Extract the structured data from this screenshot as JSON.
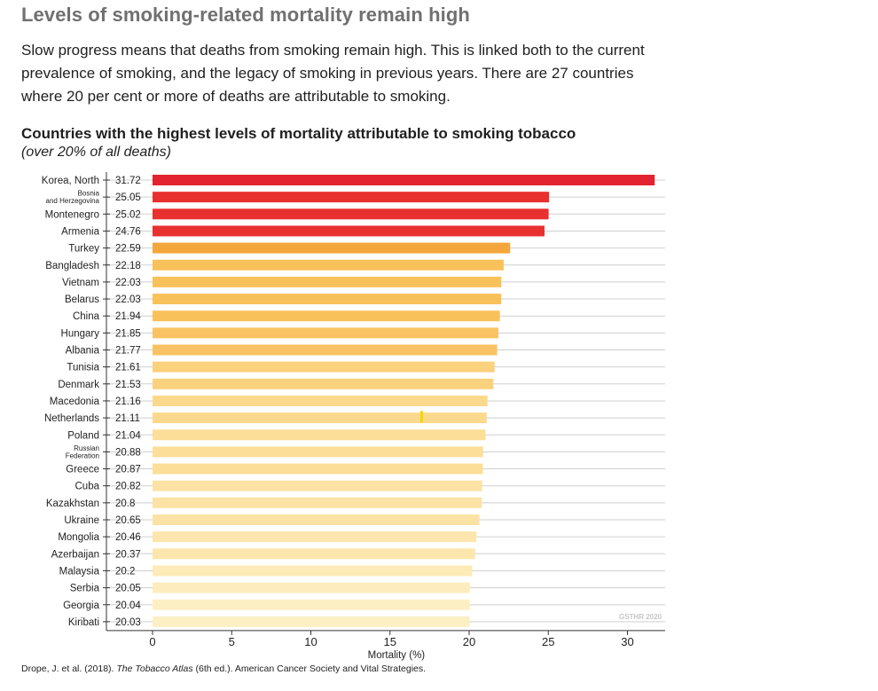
{
  "page": {
    "title": "Levels of smoking-related mortality remain high",
    "intro": "Slow progress means that deaths from smoking remain high. This is linked both to the current prevalence of smoking, and the legacy of smoking in previous years. There are 27 countries where 20 per cent or more of deaths are attributable to smoking.",
    "source_prefix": "Drope, J. et al. (2018). ",
    "source_title": "The Tobacco Atlas",
    "source_suffix": " (6th ed.). American Cancer Society and Vital Strategies."
  },
  "chart_data": {
    "type": "bar",
    "orientation": "horizontal",
    "title": "Countries with the highest levels of mortality attributable to smoking tobacco",
    "subtitle": "(over 20% of all deaths)",
    "xlabel": "Mortality (%)",
    "ylabel": "",
    "xlim": [
      0,
      32
    ],
    "xticks": [
      0,
      5,
      10,
      15,
      20,
      25,
      30
    ],
    "grid": true,
    "watermark": "GSTHR 2020",
    "categories": [
      [
        "Korea, North"
      ],
      [
        "Bosnia",
        "and Herzegovina"
      ],
      [
        "Montenegro"
      ],
      [
        "Armenia"
      ],
      [
        "Turkey"
      ],
      [
        "Bangladesh"
      ],
      [
        "Vietnam"
      ],
      [
        "Belarus"
      ],
      [
        "China"
      ],
      [
        "Hungary"
      ],
      [
        "Albania"
      ],
      [
        "Tunisia"
      ],
      [
        "Denmark"
      ],
      [
        "Macedonia"
      ],
      [
        "Netherlands"
      ],
      [
        "Poland"
      ],
      [
        "Russian",
        "Federation"
      ],
      [
        "Greece"
      ],
      [
        "Cuba"
      ],
      [
        "Kazakhstan"
      ],
      [
        "Ukraine"
      ],
      [
        "Mongolia"
      ],
      [
        "Azerbaijan"
      ],
      [
        "Malaysia"
      ],
      [
        "Serbia"
      ],
      [
        "Georgia"
      ],
      [
        "Kiribati"
      ]
    ],
    "values": [
      31.72,
      25.05,
      25.02,
      24.76,
      22.59,
      22.18,
      22.03,
      22.03,
      21.94,
      21.85,
      21.77,
      21.61,
      21.53,
      21.16,
      21.11,
      21.04,
      20.88,
      20.87,
      20.82,
      20.8,
      20.65,
      20.46,
      20.37,
      20.2,
      20.05,
      20.04,
      20.03
    ],
    "value_labels": [
      "31.72",
      "25.05",
      "25.02",
      "24.76",
      "22.59",
      "22.18",
      "22.03",
      "22.03",
      "21.94",
      "21.85",
      "21.77",
      "21.61",
      "21.53",
      "21.16",
      "21.11",
      "21.04",
      "20.88",
      "20.87",
      "20.82",
      "20.8",
      "20.65",
      "20.46",
      "20.37",
      "20.2",
      "20.05",
      "20.04",
      "20.03"
    ],
    "colors": [
      "#e3232f",
      "#e8302f",
      "#e8302f",
      "#e8302f",
      "#f3a63b",
      "#f9c15a",
      "#f9c15a",
      "#f9c15a",
      "#f9c15a",
      "#f9c363",
      "#f9c363",
      "#fad17d",
      "#fad17d",
      "#fbd98c",
      "#fbd98c",
      "#fcde98",
      "#fcde98",
      "#fcde98",
      "#fce2a4",
      "#fce2a4",
      "#fce2a4",
      "#fde6ad",
      "#fde6ad",
      "#fdebb8",
      "#fdedbe",
      "#fdefc4",
      "#fdefc4"
    ],
    "marker": {
      "x": 17,
      "row": 14,
      "color": "#f6d600"
    }
  }
}
